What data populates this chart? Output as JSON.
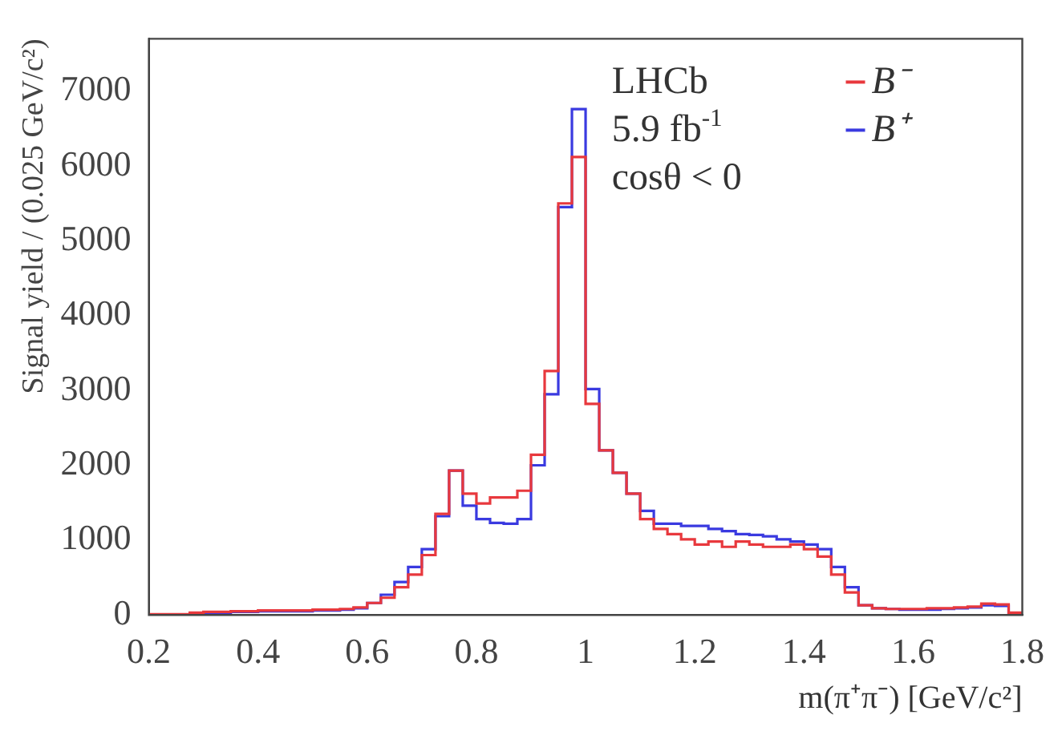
{
  "chart_data": {
    "type": "histogram",
    "xlabel": "m(π⁺π⁻) [GeV/c²]",
    "ylabel": "Signal yield / (0.025 GeV/c²)",
    "annotations": [
      "LHCb",
      "5.9 fb$^{-1}$",
      "cosθ < 0"
    ],
    "bins": [
      0.2,
      0.225,
      0.25,
      0.275,
      0.3,
      0.325,
      0.35,
      0.375,
      0.4,
      0.425,
      0.45,
      0.475,
      0.5,
      0.525,
      0.55,
      0.575,
      0.6,
      0.625,
      0.65,
      0.675,
      0.7,
      0.725,
      0.75,
      0.775,
      0.8,
      0.825,
      0.85,
      0.875,
      0.9,
      0.925,
      0.95,
      0.975,
      1.0,
      1.025,
      1.05,
      1.075,
      1.1,
      1.125,
      1.15,
      1.175,
      1.2,
      1.225,
      1.25,
      1.275,
      1.3,
      1.325,
      1.35,
      1.375,
      1.4,
      1.425,
      1.45,
      1.475,
      1.5,
      1.525,
      1.55,
      1.575,
      1.6,
      1.625,
      1.65,
      1.675,
      1.7,
      1.725,
      1.75,
      1.775,
      1.8
    ],
    "series": [
      {
        "name": "B⁻",
        "color": "#e8383d",
        "values": [
          10,
          10,
          10,
          30,
          40,
          40,
          50,
          50,
          60,
          60,
          60,
          60,
          70,
          70,
          80,
          100,
          160,
          230,
          370,
          540,
          800,
          1350,
          1930,
          1620,
          1490,
          1570,
          1570,
          1660,
          2140,
          3260,
          5500,
          6120,
          2820,
          2200,
          1900,
          1620,
          1280,
          1150,
          1080,
          1010,
          940,
          980,
          910,
          980,
          940,
          910,
          910,
          940,
          880,
          780,
          540,
          300,
          130,
          90,
          80,
          80,
          80,
          90,
          90,
          100,
          110,
          150,
          140,
          30
        ]
      },
      {
        "name": "B⁺",
        "color": "#3a3ae0",
        "values": [
          0,
          0,
          0,
          20,
          30,
          30,
          40,
          40,
          50,
          50,
          50,
          50,
          60,
          60,
          70,
          90,
          160,
          270,
          440,
          640,
          880,
          1320,
          1930,
          1460,
          1280,
          1230,
          1220,
          1280,
          2000,
          2950,
          5450,
          6760,
          3020,
          2200,
          1900,
          1620,
          1390,
          1220,
          1220,
          1190,
          1190,
          1150,
          1120,
          1080,
          1070,
          1050,
          1010,
          980,
          940,
          880,
          640,
          370,
          130,
          90,
          80,
          70,
          70,
          70,
          80,
          90,
          100,
          130,
          120,
          20
        ]
      }
    ],
    "xlim": [
      0.2,
      1.8
    ],
    "xticks": [
      0.2,
      0.4,
      0.6,
      0.8,
      1,
      1.2,
      1.4,
      1.6,
      1.8
    ],
    "ylim": [
      0,
      7700
    ],
    "yticks": [
      0,
      1000,
      2000,
      3000,
      4000,
      5000,
      6000,
      7000
    ],
    "legend": "top right"
  }
}
